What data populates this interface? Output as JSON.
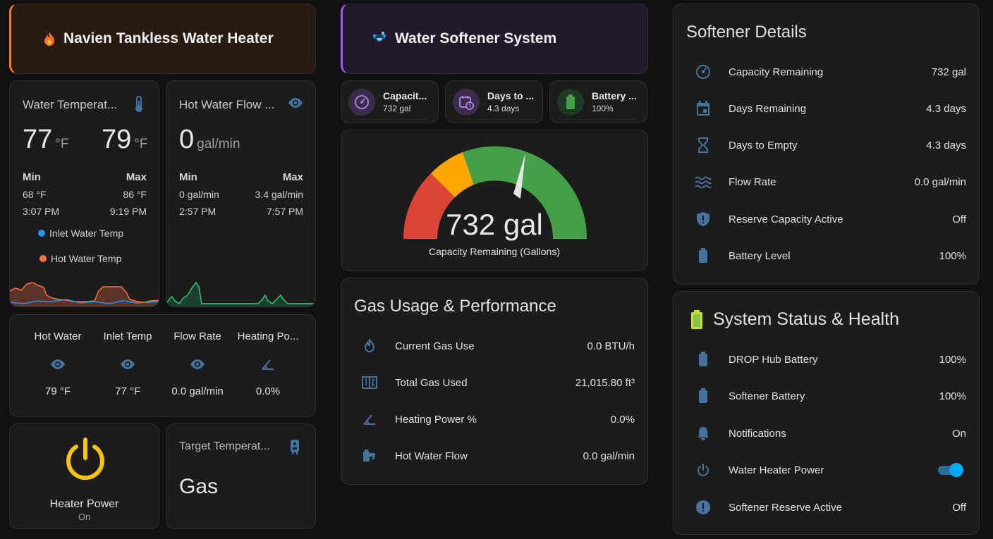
{
  "navien_header": {
    "title": "Navien Tankless Water Heater",
    "icon": "fire-icon"
  },
  "softener_header": {
    "title": "Water Softener System",
    "icon": "water-softener-icon"
  },
  "water_temp": {
    "title": "Water Temperat...",
    "inlet_value": "77",
    "hot_value": "79",
    "unit": "°F",
    "min_label": "Min",
    "max_label": "Max",
    "min_value": "68 °F",
    "max_value": "86 °F",
    "min_time": "3:07 PM",
    "max_time": "9:19 PM",
    "legend_inlet": "Inlet Water Temp",
    "legend_hot": "Hot Water Temp",
    "inlet_color": "#2196f3",
    "hot_color": "#ff7043"
  },
  "hot_water_flow": {
    "title": "Hot Water Flow ...",
    "value": "0",
    "unit": "gal/min",
    "min_label": "Min",
    "max_label": "Max",
    "min_value": "0 gal/min",
    "max_value": "3.4 gal/min",
    "min_time": "2:57 PM",
    "max_time": "7:57 PM",
    "line_color": "#2ecc71"
  },
  "glance": {
    "items": [
      {
        "label": "Hot Water",
        "icon": "eye-icon",
        "value": "79 °F"
      },
      {
        "label": "Inlet Temp",
        "icon": "eye-icon",
        "value": "77 °F"
      },
      {
        "label": "Flow Rate",
        "icon": "eye-icon",
        "value": "0.0 gal/min"
      },
      {
        "label": "Heating Po...",
        "icon": "angle-acute-icon",
        "value": "0.0%"
      }
    ]
  },
  "heater_power": {
    "label": "Heater Power",
    "state": "On",
    "color": "#f9c30f"
  },
  "target_temp": {
    "title": "Target Temperat...",
    "value": "Gas"
  },
  "tiles": [
    {
      "name": "Capacit...",
      "value": "732 gal",
      "icon": "gauge-icon",
      "color": "#a77bd6"
    },
    {
      "name": "Days to ...",
      "value": "4.3 days",
      "icon": "calendar-clock-icon",
      "color": "#a77bd6"
    },
    {
      "name": "Battery ...",
      "value": "100%",
      "icon": "battery-icon",
      "color": "#43a047"
    }
  ],
  "gauge": {
    "value": 732,
    "display": "732 gal",
    "label": "Capacity Remaining (Gallons)",
    "min": 0,
    "max": 1000,
    "colors": {
      "red": "#db4437",
      "yellow": "#ffa600",
      "green": "#43a047"
    }
  },
  "gas_usage": {
    "title": "Gas Usage & Performance",
    "rows": [
      {
        "name": "Current Gas Use",
        "value": "0.0 BTU/h",
        "icon": "flame-icon"
      },
      {
        "name": "Total Gas Used",
        "value": "21,015.80 ft³",
        "icon": "counter-icon"
      },
      {
        "name": "Heating Power %",
        "value": "0.0%",
        "icon": "angle-acute-icon"
      },
      {
        "name": "Hot Water Flow",
        "value": "0.0 gal/min",
        "icon": "water-pump-icon"
      }
    ]
  },
  "softener_details": {
    "title": "Softener Details",
    "rows": [
      {
        "name": "Capacity Remaining",
        "value": "732 gal",
        "icon": "gauge-icon"
      },
      {
        "name": "Days Remaining",
        "value": "4.3 days",
        "icon": "calendar-icon"
      },
      {
        "name": "Days to Empty",
        "value": "4.3 days",
        "icon": "hourglass-icon"
      },
      {
        "name": "Flow Rate",
        "value": "0.0 gal/min",
        "icon": "waves-icon"
      },
      {
        "name": "Reserve Capacity Active",
        "value": "Off",
        "icon": "shield-alert-icon"
      },
      {
        "name": "Battery Level",
        "value": "100%",
        "icon": "battery-icon"
      }
    ]
  },
  "system_status": {
    "title": "System Status & Health",
    "rows": [
      {
        "name": "DROP Hub Battery",
        "value": "100%",
        "icon": "battery-icon"
      },
      {
        "name": "Softener Battery",
        "value": "100%",
        "icon": "battery-icon"
      },
      {
        "name": "Notifications",
        "value": "On",
        "icon": "bell-icon"
      },
      {
        "name": "Water Heater Power",
        "value": "",
        "icon": "power-icon",
        "toggle": true
      },
      {
        "name": "Softener Reserve Active",
        "value": "Off",
        "icon": "alert-circle-icon"
      }
    ]
  }
}
